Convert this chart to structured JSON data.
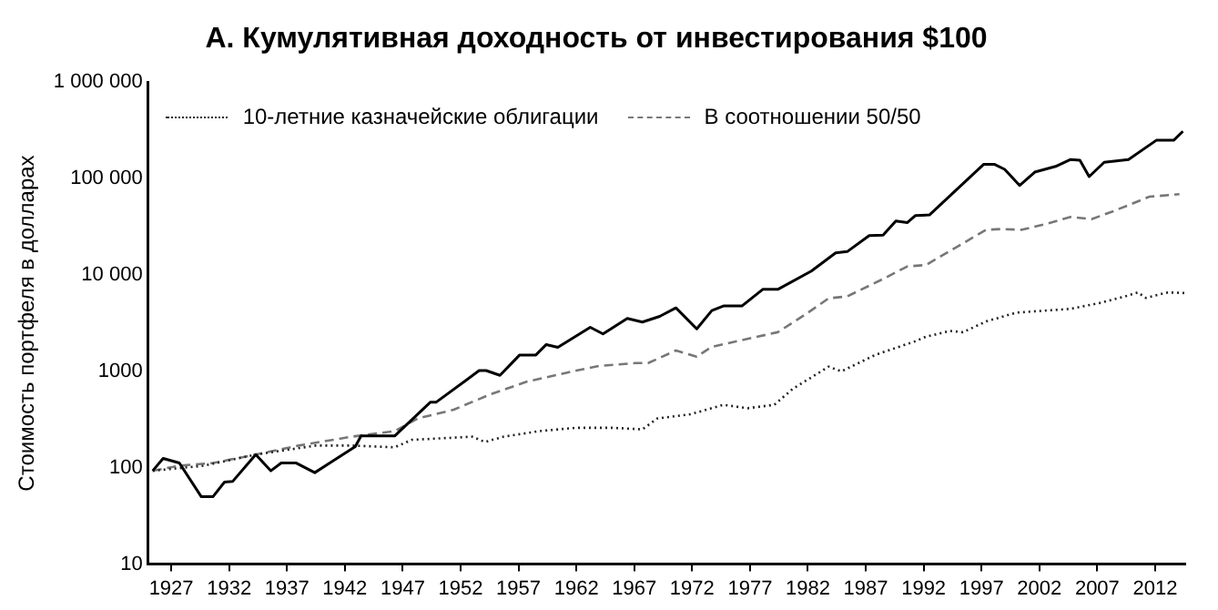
{
  "chart_data": {
    "type": "line",
    "title": "А. Кумулятивная доходность от инвестирования $100",
    "ylabel": "Стоимость портфеля в долларах",
    "xlim": [
      1925,
      2014.6
    ],
    "xticks": [
      1927,
      1932,
      1937,
      1942,
      1947,
      1952,
      1957,
      1962,
      1967,
      1972,
      1977,
      1982,
      1987,
      1992,
      1997,
      2002,
      2007,
      2012
    ],
    "ylim": [
      10,
      1000000
    ],
    "yticks": [
      10,
      100,
      1000,
      {
        "value": 10000,
        "label": "10 000"
      },
      {
        "value": 100000,
        "label": "100 000"
      },
      {
        "value": 1000000,
        "label": "1 000 000"
      }
    ],
    "log": "y",
    "grid": false,
    "legend": "top left",
    "marker": "none",
    "series": [
      {
        "color": "#000000",
        "line_style": "solid",
        "x": [
          1925.4,
          1926.3,
          1927.7,
          1929.6,
          1930.6,
          1931.6,
          1932.3,
          1934.3,
          1935.6,
          1936.5,
          1937.8,
          1939.4,
          1942.9,
          1943.4,
          1946.3,
          1949.4,
          1949.9,
          1953.6,
          1954.2,
          1955.4,
          1957.1,
          1958.5,
          1959.4,
          1960.4,
          1963.2,
          1964.3,
          1966.4,
          1967.7,
          1969.2,
          1970.6,
          1972.4,
          1973.7,
          1974.7,
          1976.3,
          1978.1,
          1979.4,
          1982.3,
          1984.4,
          1985.4,
          1987.3,
          1988.5,
          1989.6,
          1990.6,
          1991.3,
          1992.5,
          1997.2,
          1998.1,
          1999.0,
          2000.3,
          2001.6,
          2003.4,
          2004.7,
          2005.5,
          2006.3,
          2007.6,
          2009.7,
          2012.1,
          2013.6,
          2014.4
        ],
        "values": [
          93,
          125,
          112,
          50,
          50,
          71,
          72,
          137,
          93,
          112,
          112,
          89,
          166,
          214,
          214,
          480,
          480,
          1020,
          1020,
          910,
          1480,
          1480,
          1900,
          1780,
          2870,
          2450,
          3550,
          3250,
          3720,
          4560,
          2760,
          4280,
          4770,
          4770,
          7100,
          7100,
          11000,
          17000,
          17500,
          25700,
          26000,
          36400,
          35000,
          41500,
          42000,
          141000,
          141000,
          125000,
          85000,
          117000,
          134000,
          158000,
          155000,
          105000,
          148000,
          158000,
          250000,
          250000,
          310000
        ]
      },
      {
        "name": "10-летние казначейские облигации",
        "color": "#222222",
        "line_style": "dotted",
        "x": [
          1925.4,
          1929.8,
          1934.3,
          1939.5,
          1942.6,
          1946.3,
          1947.8,
          1953.0,
          1954.1,
          1955.7,
          1958.8,
          1962.0,
          1965.1,
          1967.7,
          1969.0,
          1971.9,
          1974.7,
          1976.8,
          1979.1,
          1980.7,
          1983.8,
          1984.9,
          1987.8,
          1991.2,
          1992.2,
          1994.3,
          1995.4,
          1997.4,
          2000.0,
          2004.7,
          2007.3,
          2009.4,
          2010.5,
          2011.2,
          2013.1,
          2014.6
        ],
        "values": [
          93,
          105,
          137,
          170,
          170,
          163,
          195,
          210,
          185,
          210,
          240,
          260,
          260,
          250,
          325,
          360,
          450,
          415,
          450,
          660,
          1120,
          1000,
          1480,
          2040,
          2290,
          2630,
          2550,
          3300,
          4070,
          4460,
          5150,
          6000,
          6600,
          5800,
          6600,
          6500
        ]
      },
      {
        "name": "В соотношении 50/50",
        "color": "#777777",
        "line_style": "dashed",
        "x": [
          1925.4,
          1927.7,
          1930.6,
          1934.3,
          1938.0,
          1942.6,
          1946.3,
          1948.3,
          1951.4,
          1954.6,
          1957.7,
          1962.0,
          1964.0,
          1967.1,
          1968.2,
          1970.6,
          1972.4,
          1973.7,
          1979.4,
          1981.8,
          1983.8,
          1985.4,
          1988.5,
          1990.6,
          1992.2,
          1997.4,
          1998.7,
          2000.5,
          2002.6,
          2004.7,
          2006.5,
          2008.4,
          2011.5,
          2014.1
        ],
        "values": [
          93,
          105,
          112,
          137,
          170,
          210,
          240,
          325,
          400,
          580,
          780,
          1020,
          1140,
          1220,
          1220,
          1650,
          1420,
          1800,
          2550,
          3910,
          5740,
          6000,
          9100,
          12300,
          12700,
          29500,
          30000,
          29500,
          34000,
          40000,
          38000,
          46000,
          65000,
          69000
        ]
      }
    ]
  }
}
